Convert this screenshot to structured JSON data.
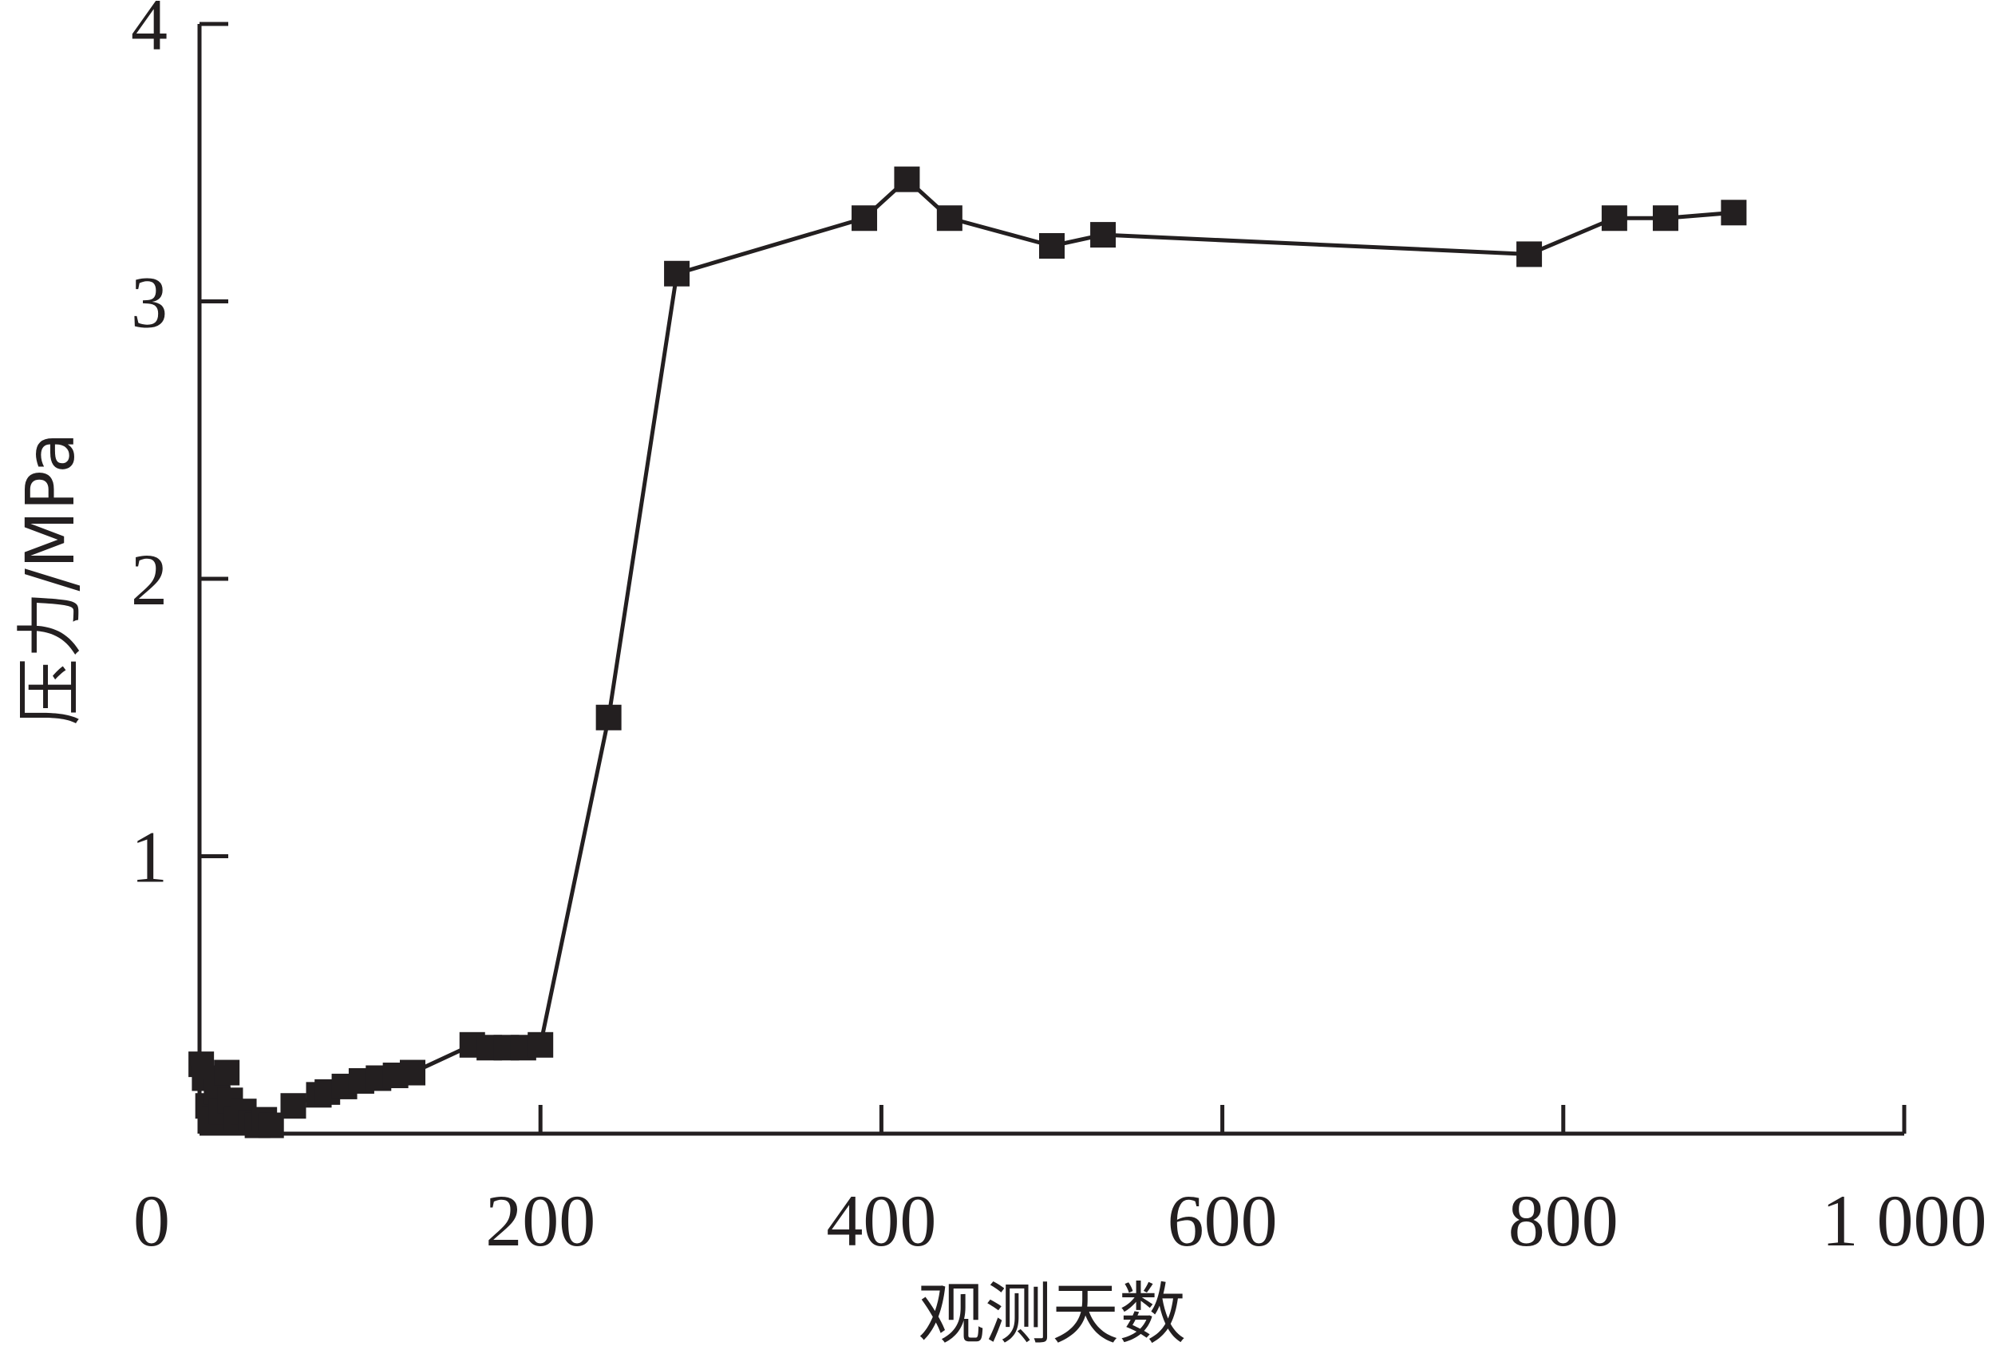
{
  "chart_data": {
    "type": "line",
    "title": "",
    "xlabel": "观测天数",
    "ylabel": "压力/MPa",
    "xlim": [
      0,
      1000
    ],
    "ylim": [
      0,
      4
    ],
    "x_ticks": [
      0,
      200,
      400,
      600,
      800,
      1000
    ],
    "x_tick_labels": [
      "0",
      "200",
      "400",
      "600",
      "800",
      "1 000"
    ],
    "y_ticks": [
      1,
      2,
      3,
      4
    ],
    "y_tick_labels": [
      "1",
      "2",
      "3",
      "4"
    ],
    "grid": false,
    "legend": "none",
    "colors": {
      "line": "#231f20",
      "marker": "#231f20",
      "axis": "#231f20"
    },
    "series": [
      {
        "marker": "square",
        "x": [
          1,
          3,
          5,
          8,
          10,
          13,
          16,
          18,
          22,
          26,
          30,
          34,
          38,
          42,
          55,
          70,
          75,
          85,
          95,
          105,
          115,
          125,
          160,
          170,
          180,
          190,
          200,
          240,
          280,
          390,
          415,
          440,
          500,
          530,
          780,
          830,
          860,
          900
        ],
        "y": [
          0.25,
          0.2,
          0.1,
          0.05,
          0.15,
          0.08,
          0.22,
          0.12,
          0.05,
          0.08,
          0.04,
          0.03,
          0.05,
          0.03,
          0.1,
          0.14,
          0.15,
          0.17,
          0.19,
          0.2,
          0.21,
          0.22,
          0.32,
          0.31,
          0.31,
          0.31,
          0.32,
          1.5,
          3.1,
          3.3,
          3.44,
          3.3,
          3.2,
          3.24,
          3.17,
          3.3,
          3.3,
          3.32
        ]
      }
    ]
  }
}
